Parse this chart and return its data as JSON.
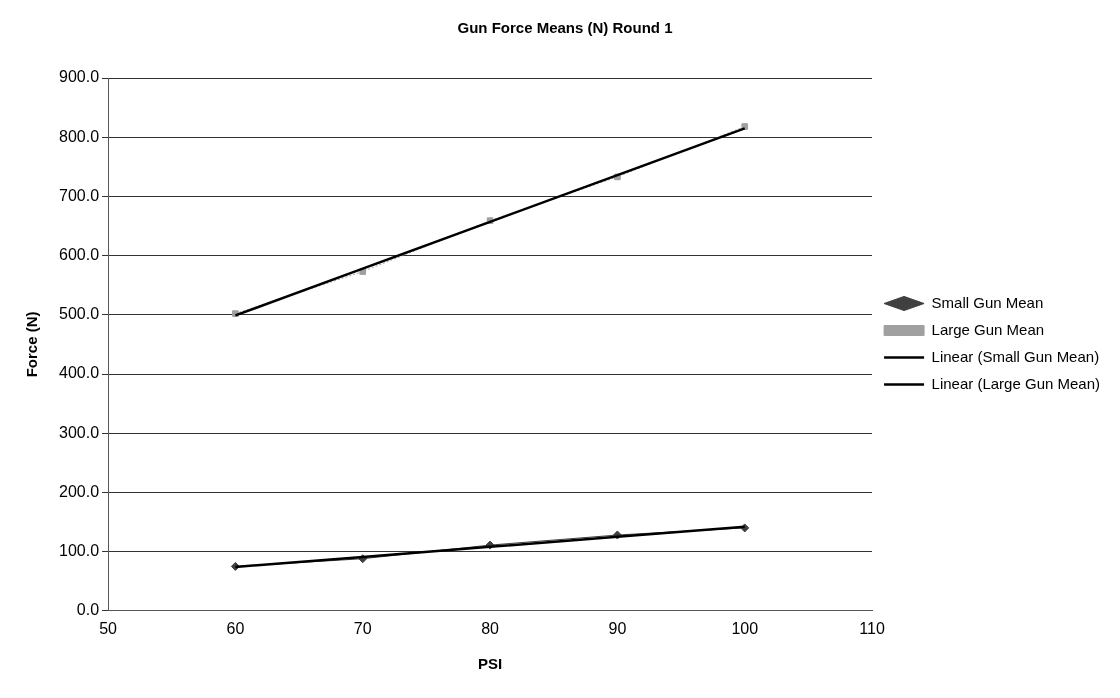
{
  "chart_data": {
    "type": "line",
    "title": "Gun Force Means (N) Round 1",
    "xlabel": "PSI",
    "ylabel": "Force (N)",
    "x": [
      60,
      70,
      80,
      90,
      100
    ],
    "series": [
      {
        "name": "Small Gun Mean",
        "color": "#404040",
        "values": [
          75,
          88,
          111,
          128,
          140
        ],
        "marker": "diamond",
        "line_style": "solid"
      },
      {
        "name": "Large Gun Mean",
        "color": "#a0a0a0",
        "values": [
          502,
          573,
          659,
          733,
          818
        ],
        "marker": "square",
        "line_style": "dotted"
      },
      {
        "name": "Linear (Small Gun Mean)",
        "color": "#000000",
        "values": [
          74,
          91,
          108,
          125,
          142
        ],
        "marker": "none",
        "line_style": "solid"
      },
      {
        "name": "Linear (Large Gun Mean)",
        "color": "#000000",
        "values": [
          499,
          578,
          657,
          736,
          815
        ],
        "marker": "none",
        "line_style": "solid"
      }
    ],
    "xlim": [
      50,
      110
    ],
    "xticks": [
      50,
      60,
      70,
      80,
      90,
      100,
      110
    ],
    "ylim": [
      0,
      900
    ],
    "yticks": [
      {
        "value": 0,
        "label": "0.0"
      },
      {
        "value": 100,
        "label": "100.0"
      },
      {
        "value": 200,
        "label": "200.0"
      },
      {
        "value": 300,
        "label": "300.0"
      },
      {
        "value": 400,
        "label": "400.0"
      },
      {
        "value": 500,
        "label": "500.0"
      },
      {
        "value": 600,
        "label": "600.0"
      },
      {
        "value": 700,
        "label": "700.0"
      },
      {
        "value": 800,
        "label": "800.0"
      },
      {
        "value": 900,
        "label": "900.0"
      }
    ],
    "grid": "y",
    "legend": "right"
  }
}
